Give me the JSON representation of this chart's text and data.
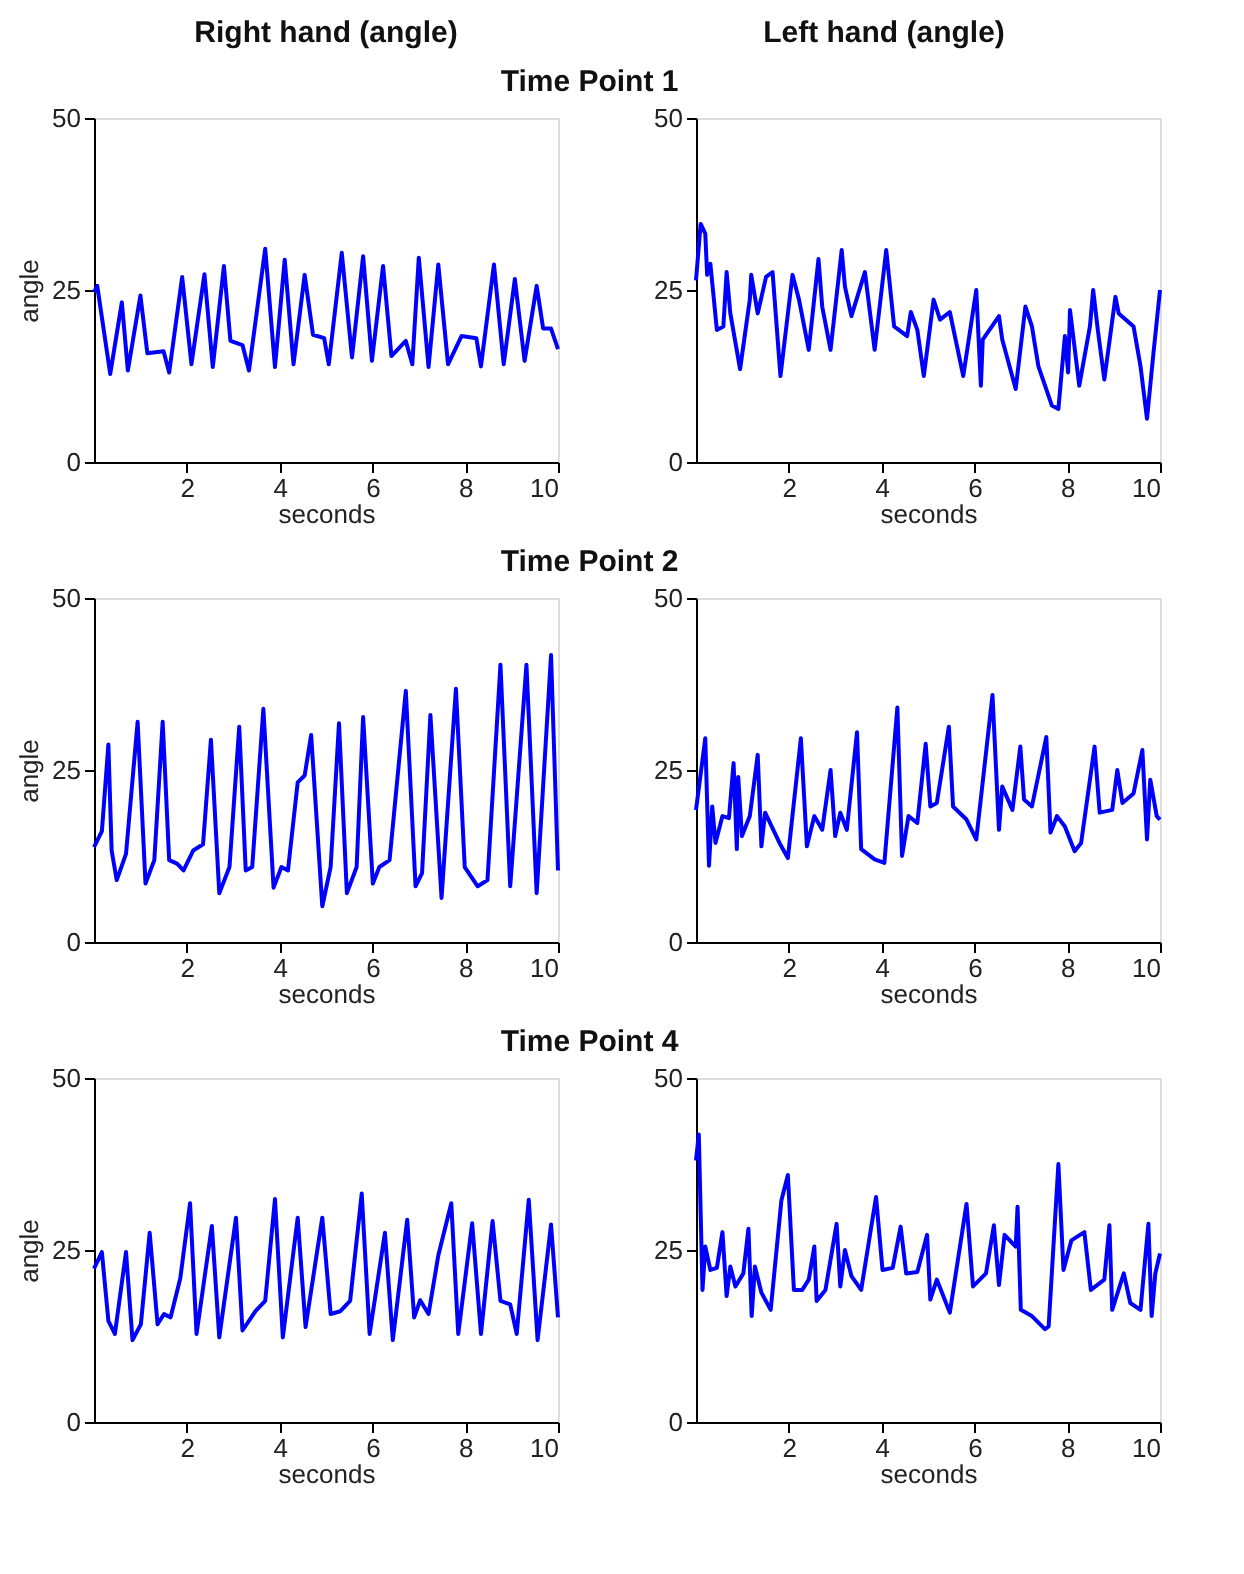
{
  "chart_data": [
    {
      "type": "line",
      "title": "Right hand (angle)",
      "subtitle": "Time Point 1",
      "xlabel": "seconds",
      "ylabel": "angle",
      "xlim": [
        0,
        10
      ],
      "ylim": [
        0,
        50
      ],
      "xticks": [
        2,
        4,
        6,
        8,
        10
      ],
      "yticks": [
        0,
        25,
        50
      ],
      "grid": false,
      "line_style": "solid",
      "x": [
        0,
        0.07,
        0.35,
        0.6,
        0.73,
        1.0,
        1.15,
        1.5,
        1.62,
        1.9,
        2.1,
        2.38,
        2.56,
        2.8,
        2.94,
        3.2,
        3.34,
        3.69,
        3.9,
        4.11,
        4.3,
        4.54,
        4.72,
        4.96,
        5.06,
        5.34,
        5.56,
        5.8,
        5.99,
        6.23,
        6.41,
        6.72,
        6.86,
        7.0,
        7.21,
        7.42,
        7.63,
        7.92,
        8.24,
        8.34,
        8.62,
        8.83,
        9.07,
        9.28,
        9.54,
        9.68,
        9.85,
        10
      ],
      "series": [
        {
          "color": "#0000ff",
          "values": [
            24.7,
            25.6,
            12.8,
            23.2,
            13.3,
            24.2,
            15.8,
            16.1,
            13,
            26.9,
            14.2,
            27.3,
            13.8,
            28.5,
            17.6,
            17,
            13.3,
            31,
            13.8,
            29.4,
            14.2,
            27.2,
            18.5,
            18,
            14.2,
            30.4,
            15.2,
            29.9,
            14.7,
            28.5,
            15.4,
            17.6,
            14.2,
            29.7,
            13.8,
            28.7,
            14.2,
            18.3,
            18,
            13.9,
            28.7,
            14.2,
            26.6,
            14.7,
            25.6,
            19.4,
            19.4,
            16.4
          ]
        }
      ]
    },
    {
      "type": "line",
      "title": "Left hand (angle)",
      "xlabel": "seconds",
      "xlim": [
        0,
        10
      ],
      "ylim": [
        0,
        50
      ],
      "xticks": [
        2,
        4,
        6,
        8,
        10
      ],
      "yticks": [
        0,
        25,
        50
      ],
      "grid": false,
      "line_style": "solid",
      "x": [
        0,
        0.1,
        0.2,
        0.24,
        0.31,
        0.45,
        0.59,
        0.66,
        0.74,
        0.95,
        1.16,
        1.19,
        1.33,
        1.51,
        1.65,
        1.82,
        2.08,
        2.22,
        2.43,
        2.64,
        2.72,
        2.9,
        3.14,
        3.21,
        3.35,
        3.64,
        3.85,
        4.1,
        4.27,
        4.55,
        4.63,
        4.77,
        4.91,
        5.12,
        5.26,
        5.47,
        5.76,
        6.04,
        6.14,
        6.18,
        6.53,
        6.6,
        6.89,
        7.1,
        7.24,
        7.38,
        7.67,
        7.81,
        7.95,
        8.02,
        8.06,
        8.26,
        8.49,
        8.56,
        8.66,
        8.8,
        9.04,
        9.11,
        9.43,
        9.58,
        9.72,
        9.86,
        10
      ],
      "series": [
        {
          "color": "#0000ff",
          "values": [
            26.4,
            34.6,
            33.2,
            27.2,
            28.8,
            19.2,
            19.7,
            27.6,
            21.6,
            13.5,
            23.6,
            27.2,
            21.6,
            26.9,
            27.6,
            12.5,
            27.2,
            23.6,
            16.3,
            29.5,
            22.6,
            16.3,
            30.8,
            25.5,
            21.2,
            27.6,
            16.3,
            30.8,
            19.7,
            18.3,
            21.8,
            19.2,
            12.5,
            23.6,
            20.7,
            21.8,
            12.5,
            25,
            11.1,
            17.8,
            21.2,
            17.8,
            10.6,
            22.6,
            19.7,
            13.9,
            8.2,
            7.7,
            18.3,
            13,
            22.1,
            11.1,
            19.7,
            25,
            19.2,
            12,
            24,
            21.6,
            19.7,
            13.9,
            6.3,
            15.9,
            25
          ]
        }
      ]
    },
    {
      "type": "line",
      "subtitle": "Time Point 2",
      "xlabel": "seconds",
      "ylabel": "angle",
      "xlim": [
        0,
        10
      ],
      "ylim": [
        0,
        50
      ],
      "xticks": [
        2,
        4,
        6,
        8,
        10
      ],
      "yticks": [
        0,
        25,
        50
      ],
      "grid": false,
      "line_style": "solid",
      "x": [
        0,
        0.17,
        0.31,
        0.38,
        0.49,
        0.69,
        0.94,
        1.11,
        1.3,
        1.48,
        1.62,
        1.79,
        1.93,
        2.14,
        2.35,
        2.52,
        2.7,
        2.92,
        3.13,
        3.27,
        3.41,
        3.65,
        3.87,
        4.04,
        4.18,
        4.39,
        4.54,
        4.68,
        4.92,
        5.1,
        5.28,
        5.45,
        5.66,
        5.8,
        6.01,
        6.15,
        6.37,
        6.72,
        6.93,
        7.07,
        7.25,
        7.49,
        7.8,
        7.99,
        8.27,
        8.48,
        8.76,
        8.97,
        9.32,
        9.54,
        9.85,
        10
      ],
      "series": [
        {
          "color": "#0000ff",
          "values": [
            13.8,
            16.1,
            28.7,
            13.3,
            9,
            12.8,
            32,
            8.5,
            11.9,
            32,
            11.9,
            11.4,
            10.4,
            13.3,
            14.2,
            29.4,
            7.1,
            10.9,
            31.3,
            10.4,
            10.9,
            33.9,
            7.9,
            10.9,
            10.4,
            23.2,
            24.2,
            30.1,
            5.2,
            10.9,
            31.8,
            7.1,
            10.9,
            32.7,
            8.5,
            10.9,
            11.9,
            36.5,
            8.1,
            10,
            33,
            6.4,
            36.8,
            10.9,
            8.1,
            9,
            40.3,
            8.1,
            40.3,
            7.1,
            41.7,
            10.4
          ]
        }
      ]
    },
    {
      "type": "line",
      "xlabel": "seconds",
      "xlim": [
        0,
        10
      ],
      "ylim": [
        0,
        50
      ],
      "xticks": [
        2,
        4,
        6,
        8,
        10
      ],
      "yticks": [
        0,
        25,
        50
      ],
      "grid": false,
      "line_style": "solid",
      "x": [
        0,
        0.2,
        0.28,
        0.35,
        0.42,
        0.57,
        0.71,
        0.81,
        0.88,
        0.91,
        0.99,
        1.16,
        1.33,
        1.41,
        1.49,
        1.8,
        1.98,
        2.26,
        2.39,
        2.55,
        2.72,
        2.9,
        3.0,
        3.11,
        3.25,
        3.47,
        3.56,
        3.85,
        4.06,
        4.34,
        4.44,
        4.58,
        4.77,
        4.95,
        5.05,
        5.19,
        5.45,
        5.54,
        5.83,
        6.04,
        6.39,
        6.53,
        6.6,
        6.82,
        6.99,
        7.07,
        7.24,
        7.55,
        7.64,
        7.78,
        7.95,
        8.16,
        8.3,
        8.59,
        8.7,
        8.97,
        9.08,
        9.19,
        9.43,
        9.62,
        9.72,
        9.79,
        9.93,
        10
      ],
      "series": [
        {
          "color": "#0000ff",
          "values": [
            19.2,
            29.6,
            11.1,
            19.7,
            14.4,
            18.3,
            18,
            26,
            13.5,
            24,
            15.4,
            18.3,
            27.2,
            13.9,
            18.8,
            14.4,
            12.2,
            29.6,
            13.9,
            18.3,
            16.3,
            25,
            15.4,
            18.8,
            16.3,
            30.5,
            13.5,
            12,
            11.5,
            34.1,
            12.5,
            18.3,
            17.3,
            28.8,
            19.7,
            20.2,
            31.3,
            19.7,
            17.8,
            14.9,
            35.9,
            16.3,
            22.6,
            19.2,
            28.4,
            20.7,
            19.7,
            29.8,
            15.9,
            18.3,
            16.8,
            13.2,
            14.4,
            28.4,
            18.8,
            19.2,
            25,
            20.2,
            21.6,
            27.9,
            14.9,
            23.6,
            18.3,
            17.8
          ]
        }
      ]
    },
    {
      "type": "line",
      "subtitle": "Time Point 4",
      "xlabel": "seconds",
      "ylabel": "angle",
      "xlim": [
        0,
        10
      ],
      "ylim": [
        0,
        50
      ],
      "xticks": [
        2,
        4,
        6,
        8,
        10
      ],
      "yticks": [
        0,
        25,
        50
      ],
      "grid": false,
      "line_style": "solid",
      "x": [
        0,
        0.17,
        0.31,
        0.45,
        0.69,
        0.83,
        1.01,
        1.2,
        1.37,
        1.51,
        1.65,
        1.86,
        2.07,
        2.21,
        2.54,
        2.7,
        3.06,
        3.2,
        3.48,
        3.69,
        3.9,
        4.07,
        4.39,
        4.56,
        4.92,
        5.1,
        5.31,
        5.52,
        5.77,
        5.94,
        6.27,
        6.44,
        6.75,
        6.9,
        7.03,
        7.21,
        7.42,
        7.7,
        7.85,
        8.15,
        8.34,
        8.59,
        8.76,
        8.97,
        9.11,
        9.37,
        9.56,
        9.85,
        10
      ],
      "series": [
        {
          "color": "#0000ff",
          "values": [
            22.3,
            24.7,
            14.7,
            12.8,
            24.7,
            11.9,
            14.2,
            27.5,
            14.2,
            15.7,
            15.2,
            20.9,
            31.8,
            12.8,
            28.5,
            12.3,
            29.7,
            13.3,
            16.1,
            17.6,
            32.4,
            12.3,
            29.7,
            13.8,
            29.7,
            15.7,
            16.1,
            17.6,
            33.2,
            12.8,
            27.5,
            11.9,
            29.4,
            15.2,
            17.7,
            15.7,
            24.2,
            31.8,
            12.8,
            28.9,
            12.8,
            29.2,
            17.6,
            17.1,
            12.8,
            32.3,
            11.9,
            28.7,
            15.2
          ]
        }
      ]
    },
    {
      "type": "line",
      "xlabel": "seconds",
      "xlim": [
        0,
        10
      ],
      "ylim": [
        0,
        50
      ],
      "xticks": [
        2,
        4,
        6,
        8,
        10
      ],
      "yticks": [
        0,
        25,
        50
      ],
      "grid": false,
      "line_style": "solid",
      "x": [
        0,
        0.06,
        0.14,
        0.2,
        0.31,
        0.45,
        0.57,
        0.66,
        0.74,
        0.85,
        1.02,
        1.13,
        1.2,
        1.27,
        1.41,
        1.61,
        1.84,
        1.98,
        2.11,
        2.29,
        2.43,
        2.55,
        2.6,
        2.79,
        3.03,
        3.11,
        3.21,
        3.35,
        3.56,
        3.88,
        4.02,
        4.24,
        4.41,
        4.53,
        4.77,
        4.98,
        5.05,
        5.19,
        5.47,
        5.83,
        5.97,
        6.25,
        6.42,
        6.53,
        6.65,
        6.89,
        6.93,
        7.0,
        7.24,
        7.52,
        7.6,
        7.81,
        7.92,
        8.09,
        8.37,
        8.51,
        8.8,
        8.91,
        8.97,
        9.22,
        9.36,
        9.58,
        9.75,
        9.82,
        9.9,
        10
      ],
      "series": [
        {
          "color": "#0000ff",
          "values": [
            38,
            41.8,
            19.2,
            25.5,
            22.1,
            22.4,
            27.6,
            18.3,
            22.6,
            19.7,
            21.6,
            28.1,
            15.4,
            22.6,
            18.8,
            16.3,
            32.2,
            35.9,
            19.2,
            19.2,
            20.7,
            25.5,
            17.6,
            19.2,
            28.8,
            19.7,
            25,
            21.2,
            19.2,
            32.7,
            22.1,
            22.4,
            28.4,
            21.6,
            21.8,
            27.2,
            17.8,
            20.7,
            15.9,
            31.7,
            19.7,
            21.6,
            28.6,
            19.9,
            27.2,
            25.5,
            31.3,
            16.3,
            15.4,
            13.5,
            13.9,
            37.5,
            22.1,
            26.4,
            27.6,
            19.2,
            20.7,
            28.6,
            16.3,
            21.6,
            17.3,
            16.3,
            28.8,
            15.4,
            21.6,
            24.5
          ]
        }
      ]
    }
  ]
}
